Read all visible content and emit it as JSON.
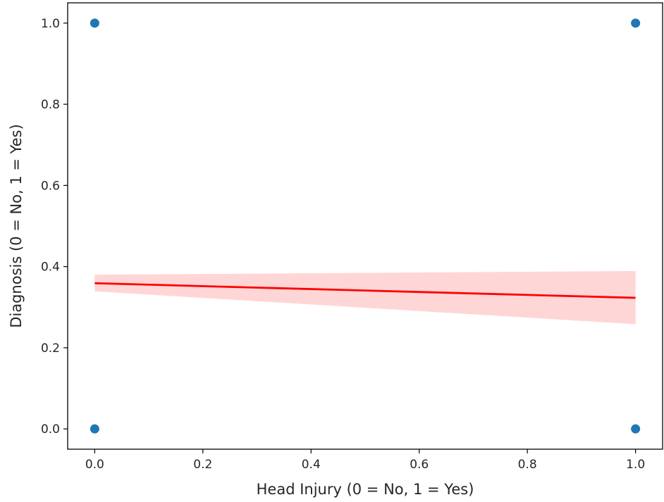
{
  "chart_data": {
    "type": "scatter",
    "title": "",
    "xlabel": "Head Injury (0 = No, 1 = Yes)",
    "ylabel": "Diagnosis (0 = No, 1 = Yes)",
    "xlim": [
      -0.05,
      1.05
    ],
    "ylim": [
      -0.05,
      1.05
    ],
    "xticks": [
      0.0,
      0.2,
      0.4,
      0.6,
      0.8,
      1.0
    ],
    "xtick_labels": [
      "0.0",
      "0.2",
      "0.4",
      "0.6",
      "0.8",
      "1.0"
    ],
    "yticks": [
      0.0,
      0.2,
      0.4,
      0.6,
      0.8,
      1.0
    ],
    "ytick_labels": [
      "0.0",
      "0.2",
      "0.4",
      "0.6",
      "0.8",
      "1.0"
    ],
    "grid": false,
    "points": [
      {
        "x": 0,
        "y": 1
      },
      {
        "x": 0,
        "y": 0
      },
      {
        "x": 1,
        "y": 1
      },
      {
        "x": 1,
        "y": 0
      }
    ],
    "regression": {
      "x": [
        0,
        1
      ],
      "y": [
        0.359,
        0.323
      ],
      "ci_lower": [
        0.339,
        0.258
      ],
      "ci_upper": [
        0.38,
        0.389
      ]
    },
    "colors": {
      "points": "#1f77b4",
      "regression_line": "#ff0000",
      "confidence_band": "#ffd6d6"
    }
  }
}
